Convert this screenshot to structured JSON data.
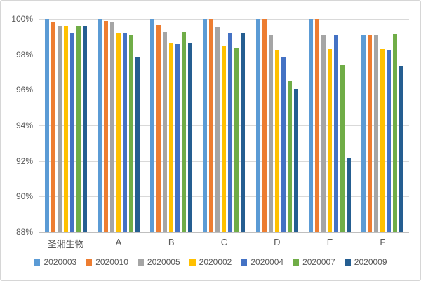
{
  "chart_data": {
    "type": "bar",
    "title": "",
    "categories": [
      "圣湘生物",
      "A",
      "B",
      "C",
      "D",
      "E",
      "F"
    ],
    "series": [
      {
        "name": "2020003",
        "color": "#5B9BD5",
        "values": [
          100,
          100,
          100,
          100,
          100,
          100,
          99.1
        ]
      },
      {
        "name": "2020010",
        "color": "#ED7D31",
        "values": [
          99.8,
          99.9,
          99.65,
          100,
          100,
          100,
          99.1
        ]
      },
      {
        "name": "2020005",
        "color": "#A5A5A5",
        "values": [
          99.6,
          99.85,
          99.3,
          99.55,
          99.1,
          99.1,
          99.1
        ]
      },
      {
        "name": "2020002",
        "color": "#FFC000",
        "values": [
          99.6,
          99.2,
          98.65,
          98.45,
          98.25,
          98.3,
          98.3
        ]
      },
      {
        "name": "2020004",
        "color": "#4472C4",
        "values": [
          99.2,
          99.2,
          98.6,
          99.2,
          97.85,
          99.1,
          98.25
        ]
      },
      {
        "name": "2020007",
        "color": "#70AD47",
        "values": [
          99.6,
          99.1,
          99.3,
          98.4,
          96.5,
          97.4,
          99.15
        ]
      },
      {
        "name": "2020009",
        "color": "#255E91",
        "values": [
          99.6,
          97.85,
          98.65,
          99.2,
          96.05,
          92.2,
          97.35
        ]
      }
    ],
    "xlabel": "",
    "ylabel": "",
    "ylim": [
      88,
      100
    ],
    "ytick_labels": [
      "100%",
      "98%",
      "96%",
      "94%",
      "92%",
      "90%",
      "88%"
    ],
    "ytick_values": [
      100,
      98,
      96,
      94,
      92,
      90,
      88
    ],
    "grid": true,
    "legend_position": "bottom"
  },
  "colors": {
    "axis_text": "#595959",
    "gridline": "#D9D9D9",
    "baseline": "#BFBFBF",
    "background": "#FFFFFF",
    "frame_border": "#D6D6D6"
  }
}
